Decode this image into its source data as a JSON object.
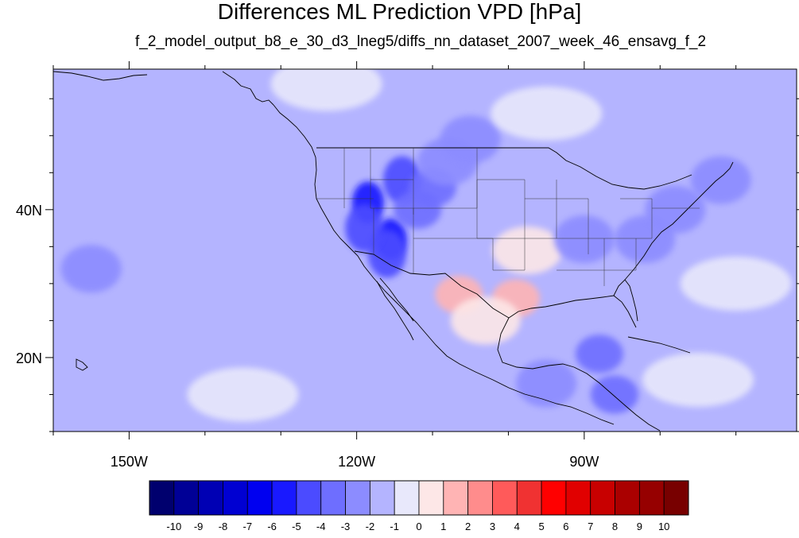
{
  "map": {
    "title": "Differences ML Prediction VPD [hPa]",
    "subtitle": "f_2_model_output_b8_e_30_d3_lneg5/diffs_nn_dataset_2007_week_46_ensavg_f_2",
    "lon_range": [
      -160,
      -62
    ],
    "lat_range": [
      10,
      59
    ],
    "lon_ticks": [
      {
        "value": -150,
        "label": "150W"
      },
      {
        "value": -120,
        "label": "120W"
      },
      {
        "value": -90,
        "label": "90W"
      }
    ],
    "lat_ticks": [
      {
        "value": 40,
        "label": "40N"
      },
      {
        "value": 20,
        "label": "20N"
      }
    ],
    "background_level": -1,
    "colorbar": {
      "levels": [
        -10,
        -9,
        -8,
        -7,
        -6,
        -5,
        -4,
        -3,
        -2,
        -1,
        0,
        1,
        2,
        3,
        4,
        5,
        6,
        7,
        8,
        9,
        10
      ],
      "labels": [
        "-10",
        "-9",
        "-8",
        "-7",
        "-6",
        "-5",
        "-4",
        "-3",
        "-2",
        "-1",
        "0",
        "1",
        "2",
        "3",
        "4",
        "5",
        "6",
        "7",
        "8",
        "9",
        "10"
      ],
      "colors": [
        "#00006e",
        "#000096",
        "#0000b4",
        "#0000d2",
        "#0000f0",
        "#1919ff",
        "#4b4bff",
        "#6e6eff",
        "#8c8cff",
        "#b4b4ff",
        "#e8e8fb",
        "#fde7e7",
        "#ffb4b4",
        "#ff8c8c",
        "#ff5a5a",
        "#f03232",
        "#ff0000",
        "#e10000",
        "#c80000",
        "#aa0000",
        "#960000",
        "#780000"
      ]
    },
    "regions": [
      {
        "lon": -118.5,
        "lat": 41,
        "level": -5
      },
      {
        "lon": -115.5,
        "lat": 36,
        "level": -5
      },
      {
        "lon": -114,
        "lat": 44,
        "level": -4
      },
      {
        "lon": -112,
        "lat": 40,
        "level": -3
      },
      {
        "lon": -110,
        "lat": 43,
        "level": -3
      },
      {
        "lon": -108,
        "lat": 46.5,
        "level": -2
      },
      {
        "lon": -105,
        "lat": 49.5,
        "level": -2
      },
      {
        "lon": -116,
        "lat": 34,
        "level": -4
      },
      {
        "lon": -119,
        "lat": 37.5,
        "level": -4
      },
      {
        "lon": -106.5,
        "lat": 28.5,
        "level": 2
      },
      {
        "lon": -99,
        "lat": 28,
        "level": 2
      },
      {
        "lon": -97.5,
        "lat": 34.5,
        "level": 1
      },
      {
        "lon": -103,
        "lat": 25,
        "level": 1
      },
      {
        "lon": -82,
        "lat": 36,
        "level": -2
      },
      {
        "lon": -78,
        "lat": 40,
        "level": -2
      },
      {
        "lon": -72,
        "lat": 44,
        "level": -2
      },
      {
        "lon": -90,
        "lat": 36,
        "level": -2
      },
      {
        "lon": -88,
        "lat": 20.5,
        "level": -3
      },
      {
        "lon": -86,
        "lat": 15,
        "level": -3
      },
      {
        "lon": -95,
        "lat": 16.5,
        "level": -2
      },
      {
        "lon": -155,
        "lat": 32,
        "level": -2
      },
      {
        "lon": -124,
        "lat": 57,
        "level": 0
      },
      {
        "lon": -95,
        "lat": 53,
        "level": 0
      },
      {
        "lon": -70,
        "lat": 30,
        "level": 0
      },
      {
        "lon": -135,
        "lat": 15,
        "level": 0
      },
      {
        "lon": -75,
        "lat": 17,
        "level": 0
      }
    ]
  }
}
